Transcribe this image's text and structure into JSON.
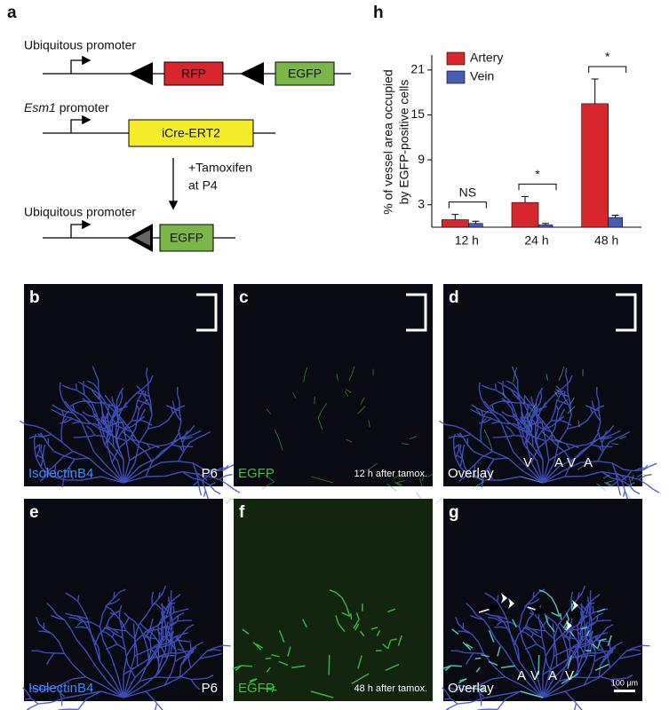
{
  "construct": {
    "letter": "a",
    "rows": [
      {
        "promoter": "Ubiquitous promoter",
        "elements": [
          "RFP",
          "EGFP"
        ]
      },
      {
        "promoter": {
          "gene": "Esm1",
          "suffix": "promoter"
        },
        "elements": [
          "iCre-ERT2"
        ]
      },
      {
        "promoter": "Ubiquitous promoter",
        "elements": [
          "EGFP"
        ]
      }
    ],
    "treatment": [
      "+Tamoxifen",
      "at P4"
    ]
  },
  "chart_data": {
    "type": "bar",
    "letter": "h",
    "y_label": [
      "% of vessel area occupied",
      "by EGFP-positive cells"
    ],
    "categories": [
      "12 h",
      "24 h",
      "48 h"
    ],
    "series": [
      {
        "name": "Artery",
        "color": "#d7262e",
        "values": [
          1.0,
          3.3,
          16.5
        ],
        "errors": [
          0.7,
          0.8,
          3.3
        ]
      },
      {
        "name": "Vein",
        "color": "#4a5bb5",
        "values": [
          0.5,
          0.3,
          1.3
        ],
        "errors": [
          0.3,
          0.2,
          0.3
        ]
      }
    ],
    "annotations": [
      "NS",
      "*",
      "*"
    ],
    "ylim": [
      0,
      23
    ],
    "yticks": [
      3,
      9,
      15,
      21
    ],
    "legend": "top-left"
  },
  "panels": [
    {
      "letter": "b",
      "stain": "IsolectinB4",
      "note": "P6"
    },
    {
      "letter": "c",
      "stain": "EGFP",
      "note": "12 h after tamox."
    },
    {
      "letter": "d",
      "stain": "Overlay",
      "markers": [
        "V",
        "A",
        "V",
        "A"
      ]
    },
    {
      "letter": "e",
      "stain": "IsolectinB4",
      "note": "P6"
    },
    {
      "letter": "f",
      "stain": "EGFP",
      "note": "48 h after tamox."
    },
    {
      "letter": "g",
      "stain": "Overlay",
      "markers": [
        "A",
        "V",
        "A",
        "V"
      ],
      "scale": "100 μm"
    }
  ]
}
